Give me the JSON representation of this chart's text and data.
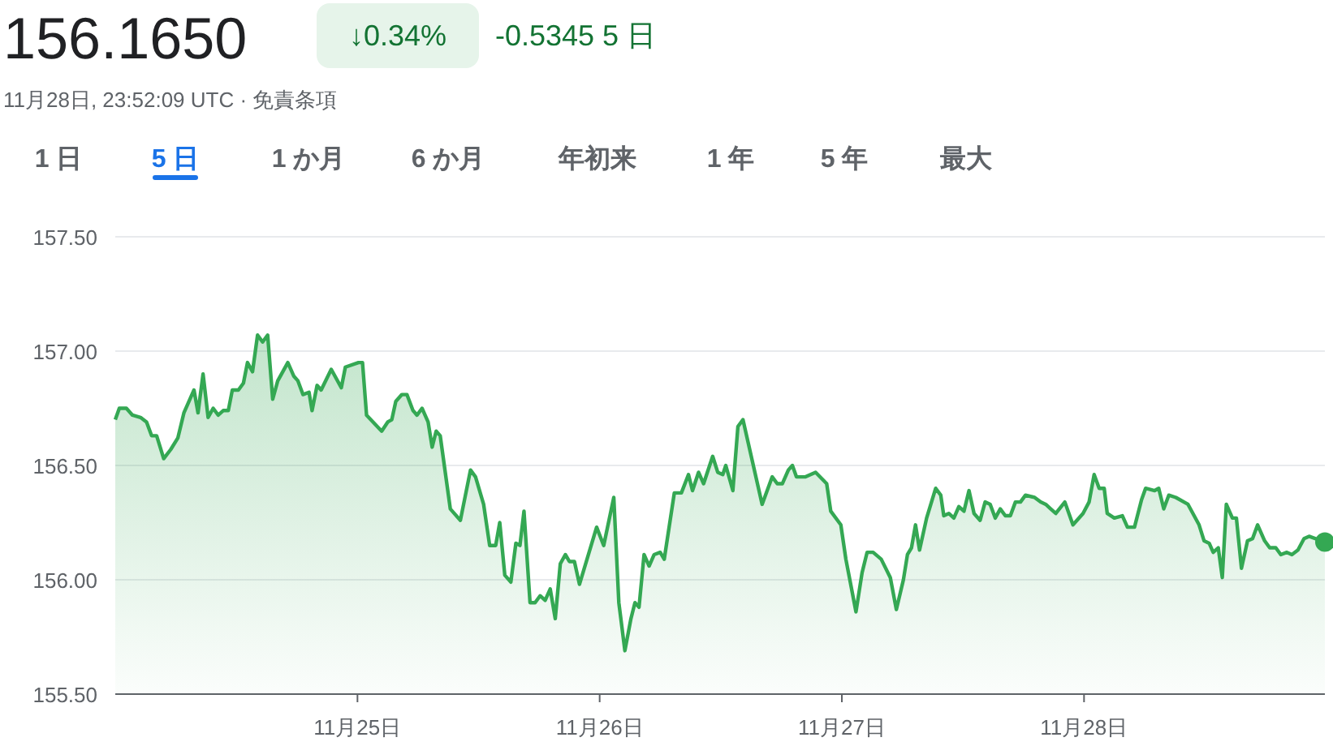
{
  "chart_data": {
    "type": "area",
    "title": "156.1650",
    "annotations": [
      "↓0.34%",
      "-0.5345 5 日",
      "11月28日, 23:52:09 UTC · 免責条項",
      "1 日",
      "5 日",
      "1 か月",
      "6 か月",
      "年初来",
      "1 年",
      "5 年",
      "最大"
    ],
    "x": [
      "--11-24T00:00",
      "--11-24T00:24",
      "--11-24T01:06",
      "--11-24T01:42",
      "--11-24T02:30",
      "--11-24T03:06",
      "--11-24T03:36",
      "--11-24T04:06",
      "--11-24T04:48",
      "--11-24T05:30",
      "--11-24T06:12",
      "--11-24T06:48",
      "--11-24T07:12",
      "--11-24T07:48",
      "--11-24T08:12",
      "--11-24T08:42",
      "--11-24T09:12",
      "--11-24T09:42",
      "--11-24T10:12",
      "--11-24T10:42",
      "--11-24T11:12",
      "--11-24T11:36",
      "--11-24T12:12",
      "--11-24T12:42",
      "--11-24T13:06",
      "--11-24T13:36",
      "--11-24T14:06",
      "--11-24T14:36",
      "--11-24T15:06",
      "--11-24T15:36",
      "--11-24T16:06",
      "--11-24T17:06",
      "--11-24T17:42",
      "--11-24T18:06",
      "--11-24T18:36",
      "--11-24T19:12",
      "--11-24T19:30",
      "--11-24T20:00",
      "--11-24T20:24",
      "--11-24T21:24",
      "--11-24T22:24",
      "--11-24T22:48",
      "--11-25T00:06",
      "--11-25T00:30",
      "--11-25T00:54",
      "--11-25T02:24",
      "--11-25T03:00",
      "--11-25T03:24",
      "--11-25T03:48",
      "--11-25T04:24",
      "--11-25T04:54",
      "--11-25T05:30",
      "--11-25T05:54",
      "--11-25T06:24",
      "--11-25T07:00",
      "--11-25T07:24",
      "--11-25T07:48",
      "--11-25T08:12",
      "--11-25T09:12",
      "--11-25T10:12",
      "--11-25T11:12",
      "--11-25T11:42",
      "--11-25T12:30",
      "--11-25T13:06",
      "--11-25T13:42",
      "--11-25T14:06",
      "--11-25T14:36",
      "--11-25T15:12",
      "--11-25T15:42",
      "--11-25T16:06",
      "--11-25T16:30",
      "--11-25T17:06",
      "--11-25T17:36",
      "--11-25T18:06",
      "--11-25T18:36",
      "--11-25T19:06",
      "--11-25T19:36",
      "--11-25T20:06",
      "--11-25T20:36",
      "--11-25T21:00",
      "--11-25T21:30",
      "--11-25T22:00",
      "--11-25T23:42",
      "--11-26T00:24",
      "--11-26T01:24",
      "--11-26T01:54",
      "--11-26T02:30",
      "--11-26T03:06",
      "--11-26T03:30",
      "--11-26T03:54",
      "--11-26T04:24",
      "--11-26T04:54",
      "--11-26T05:24",
      "--11-26T06:00",
      "--11-26T06:24",
      "--11-26T07:24",
      "--11-26T08:06",
      "--11-26T08:48",
      "--11-26T09:12",
      "--11-26T09:48",
      "--11-26T10:18",
      "--11-26T11:12",
      "--11-26T11:42",
      "--11-26T12:12",
      "--11-26T12:30",
      "--11-26T13:12",
      "--11-26T13:42",
      "--11-26T14:12",
      "--11-26T16:06",
      "--11-26T17:06",
      "--11-26T17:36",
      "--11-26T18:06",
      "--11-26T18:42",
      "--11-26T19:06",
      "--11-26T19:30",
      "--11-26T20:24",
      "--11-26T21:24",
      "--11-26T22:30",
      "--11-26T22:54",
      "--11-26T23:54",
      "--11-27T00:24",
      "--11-27T01:24",
      "--11-27T02:00",
      "--11-27T02:30",
      "--11-27T03:06",
      "--11-27T03:54",
      "--11-27T04:48",
      "--11-27T05:24",
      "--11-27T06:06",
      "--11-27T06:30",
      "--11-27T06:54",
      "--11-27T07:18",
      "--11-27T07:42",
      "--11-27T08:24",
      "--11-27T09:18",
      "--11-27T09:48",
      "--11-27T10:06",
      "--11-27T10:36",
      "--11-27T11:06",
      "--11-27T11:36",
      "--11-27T12:06",
      "--11-27T12:36",
      "--11-27T13:06",
      "--11-27T13:42",
      "--11-27T14:12",
      "--11-27T14:42",
      "--11-27T15:12",
      "--11-27T15:42",
      "--11-27T16:12",
      "--11-27T16:42",
      "--11-27T17:12",
      "--11-27T17:42",
      "--11-27T18:12",
      "--11-27T19:06",
      "--11-27T19:42",
      "--11-27T20:12",
      "--11-27T20:42",
      "--11-27T21:12",
      "--11-27T22:06",
      "--11-27T22:54",
      "--11-27T23:54",
      "--11-28T00:30",
      "--11-28T01:00",
      "--11-28T01:30",
      "--11-28T02:00",
      "--11-28T02:18",
      "--11-28T03:00",
      "--11-28T03:48",
      "--11-28T04:18",
      "--11-28T05:00",
      "--11-28T05:42",
      "--11-28T06:06",
      "--11-28T07:00",
      "--11-28T07:24",
      "--11-28T07:54",
      "--11-28T08:24",
      "--11-28T09:06",
      "--11-28T10:18",
      "--11-28T11:24",
      "--11-28T11:54",
      "--11-28T12:24",
      "--11-28T12:48",
      "--11-28T13:18",
      "--11-28T13:42",
      "--11-28T14:06",
      "--11-28T14:42",
      "--11-28T15:06",
      "--11-28T15:36",
      "--11-28T16:12",
      "--11-28T16:42",
      "--11-28T17:12",
      "--11-28T17:54",
      "--11-28T18:24",
      "--11-28T19:00",
      "--11-28T19:30",
      "--11-28T20:06",
      "--11-28T20:36",
      "--11-28T21:12",
      "--11-28T21:48",
      "--11-28T22:18",
      "--11-28T23:52"
    ],
    "series": [
      {
        "color": "#34a853",
        "values": [
          156.7,
          156.75,
          156.75,
          156.72,
          156.71,
          156.69,
          156.63,
          156.63,
          156.53,
          156.57,
          156.62,
          156.73,
          156.77,
          156.83,
          156.73,
          156.9,
          156.71,
          156.75,
          156.72,
          156.74,
          156.74,
          156.83,
          156.83,
          156.86,
          156.95,
          156.91,
          157.07,
          157.04,
          157.07,
          156.79,
          156.87,
          156.95,
          156.89,
          156.87,
          156.81,
          156.82,
          156.74,
          156.85,
          156.83,
          156.92,
          156.84,
          156.93,
          156.95,
          156.95,
          156.72,
          156.65,
          156.69,
          156.7,
          156.78,
          156.81,
          156.81,
          156.74,
          156.72,
          156.75,
          156.69,
          156.58,
          156.65,
          156.63,
          156.31,
          156.26,
          156.48,
          156.45,
          156.33,
          156.15,
          156.15,
          156.25,
          156.02,
          155.99,
          156.16,
          156.15,
          156.3,
          155.9,
          155.9,
          155.93,
          155.91,
          155.96,
          155.83,
          156.07,
          156.11,
          156.08,
          156.08,
          155.98,
          156.23,
          156.15,
          156.36,
          155.9,
          155.69,
          155.83,
          155.9,
          155.88,
          156.11,
          156.06,
          156.11,
          156.12,
          156.09,
          156.38,
          156.38,
          156.46,
          156.39,
          156.47,
          156.42,
          156.54,
          156.47,
          156.46,
          156.5,
          156.39,
          156.67,
          156.7,
          156.33,
          156.45,
          156.42,
          156.42,
          156.48,
          156.5,
          156.45,
          156.45,
          156.47,
          156.42,
          156.3,
          156.24,
          156.09,
          155.86,
          156.03,
          156.12,
          156.12,
          156.09,
          156.01,
          155.87,
          156.0,
          156.11,
          156.14,
          156.24,
          156.13,
          156.27,
          156.4,
          156.37,
          156.28,
          156.29,
          156.27,
          156.32,
          156.3,
          156.39,
          156.29,
          156.26,
          156.34,
          156.33,
          156.27,
          156.31,
          156.28,
          156.28,
          156.34,
          156.34,
          156.37,
          156.36,
          156.34,
          156.33,
          156.31,
          156.29,
          156.34,
          156.24,
          156.29,
          156.34,
          156.46,
          156.4,
          156.4,
          156.29,
          156.27,
          156.28,
          156.23,
          156.23,
          156.35,
          156.4,
          156.39,
          156.4,
          156.31,
          156.37,
          156.36,
          156.33,
          156.24,
          156.17,
          156.16,
          156.12,
          156.14,
          156.01,
          156.33,
          156.27,
          156.27,
          156.05,
          156.17,
          156.18,
          156.24,
          156.17,
          156.14,
          156.14,
          156.11,
          156.12,
          156.11,
          156.13,
          156.18,
          156.19,
          156.165
        ]
      }
    ],
    "xlim": [
      "--11-24T00:00",
      "--11-28T23:52"
    ],
    "xticks": [
      {
        "value": "--11-25",
        "label": "11月25日"
      },
      {
        "value": "--11-26",
        "label": "11月26日"
      },
      {
        "value": "--11-27",
        "label": "11月27日"
      },
      {
        "value": "--11-28",
        "label": "11月28日"
      }
    ],
    "ylim": [
      155.5,
      157.5
    ],
    "yticks": [
      {
        "value": 155.5,
        "label": "155.50"
      },
      {
        "value": 156.0,
        "label": "156.00"
      },
      {
        "value": 156.5,
        "label": "156.50"
      },
      {
        "value": 157.0,
        "label": "157.00"
      },
      {
        "value": 157.5,
        "label": "157.50"
      }
    ],
    "grid": "y"
  }
}
